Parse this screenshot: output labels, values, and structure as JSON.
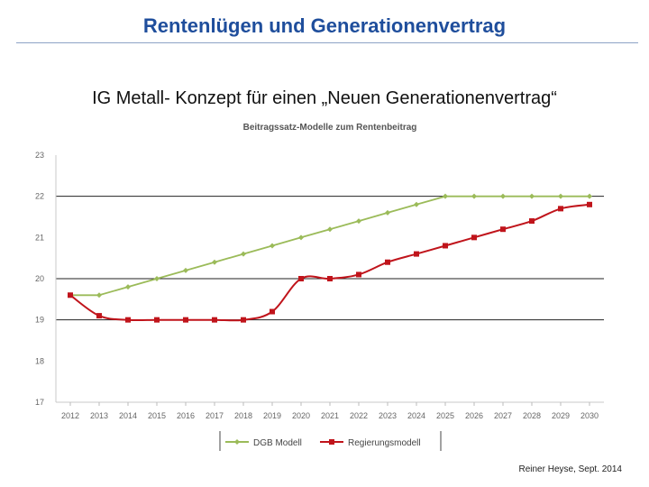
{
  "slide": {
    "title": "Rentenlügen und Generationenvertrag",
    "subtitle": "IG Metall- Konzept für einen „Neuen Generationenvertrag“",
    "credit": "Reiner Heyse, Sept. 2014"
  },
  "chart_data": {
    "type": "line",
    "title": "Beitragssatz-Modelle zum Rentenbeitrag",
    "xlabel": "",
    "ylabel": "",
    "categories": [
      "2012",
      "2013",
      "2014",
      "2015",
      "2016",
      "2017",
      "2018",
      "2019",
      "2020",
      "2021",
      "2022",
      "2023",
      "2024",
      "2025",
      "2026",
      "2027",
      "2028",
      "2029",
      "2030"
    ],
    "ylim": [
      17,
      23
    ],
    "yticks": [
      "17",
      "18",
      "19",
      "20",
      "21",
      "22",
      "23"
    ],
    "gridlines": [
      19,
      20,
      22
    ],
    "legend_position": "bottom",
    "series": [
      {
        "name": "DGB Modell",
        "color": "#9bbb59",
        "marker": "diamond",
        "smooth": false,
        "values": [
          19.6,
          19.6,
          19.8,
          20.0,
          20.2,
          20.4,
          20.6,
          20.8,
          21.0,
          21.2,
          21.4,
          21.6,
          21.8,
          22.0,
          22.0,
          22.0,
          22.0,
          22.0,
          22.0
        ]
      },
      {
        "name": "Regierungsmodell",
        "color": "#c0141b",
        "marker": "square",
        "smooth": true,
        "values": [
          19.6,
          19.1,
          19.0,
          19.0,
          19.0,
          19.0,
          19.0,
          19.2,
          20.0,
          20.0,
          20.1,
          20.4,
          20.6,
          20.8,
          21.0,
          21.2,
          21.4,
          21.7,
          21.8
        ]
      }
    ]
  }
}
